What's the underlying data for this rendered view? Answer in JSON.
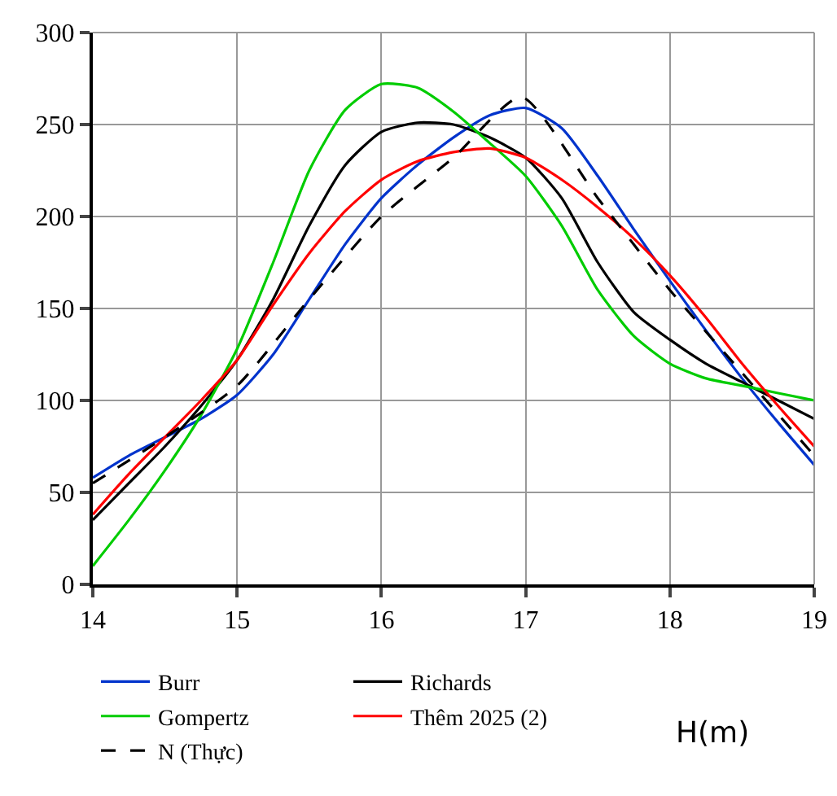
{
  "chart_data": {
    "type": "line",
    "xlabel": "H(m)",
    "x": [
      14,
      14.25,
      14.5,
      14.75,
      15,
      15.25,
      15.5,
      15.75,
      16,
      16.25,
      16.5,
      16.75,
      17,
      17.25,
      17.5,
      17.75,
      18,
      18.25,
      18.5,
      18.75,
      19
    ],
    "series": [
      {
        "name": "Burr",
        "color": "#0033cc",
        "values": [
          58,
          70,
          80,
          90,
          103,
          125,
          155,
          185,
          210,
          228,
          243,
          255,
          259,
          248,
          222,
          193,
          165,
          138,
          112,
          88,
          65
        ]
      },
      {
        "name": "Richards",
        "color": "#000000",
        "values": [
          35,
          55,
          75,
          97,
          122,
          155,
          195,
          228,
          246,
          251,
          250,
          243,
          232,
          210,
          175,
          148,
          133,
          120,
          110,
          100,
          90
        ]
      },
      {
        "name": "Gompertz",
        "color": "#00cc00",
        "values": [
          10,
          35,
          62,
          92,
          128,
          175,
          225,
          258,
          272,
          270,
          257,
          240,
          222,
          195,
          160,
          135,
          120,
          112,
          108,
          104,
          100
        ]
      },
      {
        "name": "Thêm 2025 (2)",
        "color": "#ff0000",
        "values": [
          38,
          60,
          80,
          100,
          122,
          152,
          180,
          203,
          220,
          230,
          235,
          237,
          232,
          220,
          205,
          188,
          168,
          145,
          120,
          97,
          75
        ]
      },
      {
        "name": "N (Thực)",
        "color": "#000000",
        "line_style": "dashed",
        "x": [
          14,
          14.5,
          15,
          15.5,
          16,
          16.5,
          16.97,
          17.5,
          18,
          18.5,
          19
        ],
        "values": [
          55,
          80,
          108,
          155,
          200,
          232,
          265,
          210,
          160,
          115,
          70
        ]
      }
    ],
    "xlim": [
      14,
      19
    ],
    "xticks": [
      14,
      15,
      16,
      17,
      18,
      19
    ],
    "ylim": [
      0,
      300
    ],
    "yticks": [
      0,
      50,
      100,
      150,
      200,
      250,
      300
    ],
    "grid": true,
    "legend": "bottom",
    "line_style": "solid",
    "marker": "none"
  }
}
